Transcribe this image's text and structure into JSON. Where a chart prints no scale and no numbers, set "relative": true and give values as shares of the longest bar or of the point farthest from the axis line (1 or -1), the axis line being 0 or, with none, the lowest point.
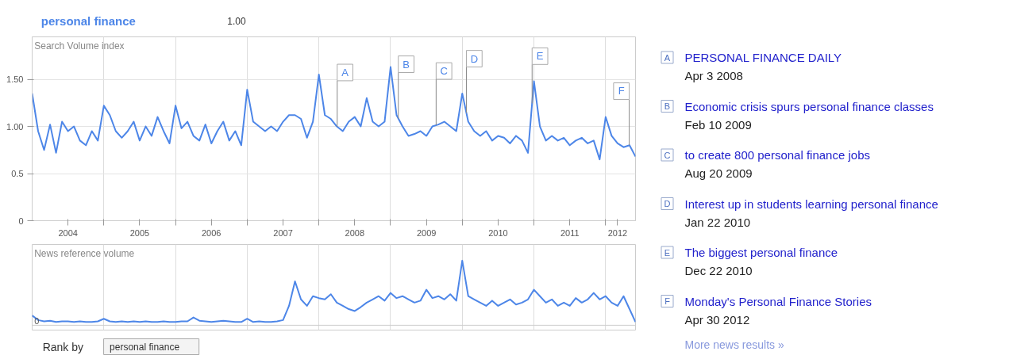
{
  "chart_data": [
    {
      "type": "line",
      "subtitle": "1.00",
      "ylabel": "Search Volume index",
      "xlim": [
        "2004-01",
        "2012-06"
      ],
      "ylim": [
        0,
        1.95
      ],
      "yticks": [
        0,
        0.5,
        {
          "value": 1.0,
          "label": "1.00"
        },
        {
          "value": 1.5,
          "label": "1.50"
        }
      ],
      "xticks": [
        {
          "value": "2004-07",
          "label": "2004"
        },
        {
          "value": "2005-07",
          "label": "2005"
        },
        {
          "value": "2006-07",
          "label": "2006"
        },
        {
          "value": "2007-07",
          "label": "2007"
        },
        {
          "value": "2008-07",
          "label": "2008"
        },
        {
          "value": "2009-07",
          "label": "2009"
        },
        {
          "value": "2010-07",
          "label": "2010"
        },
        {
          "value": "2011-07",
          "label": "2011"
        },
        {
          "value": "2012-03",
          "label": "2012"
        },
        {
          "value": "2005-01",
          "label": null
        },
        {
          "value": "2006-01",
          "label": null
        },
        {
          "value": "2007-01",
          "label": null
        },
        {
          "value": "2008-01",
          "label": null
        },
        {
          "value": "2009-01",
          "label": null
        },
        {
          "value": "2010-01",
          "label": null
        },
        {
          "value": "2011-01",
          "label": null
        },
        {
          "value": "2012-01",
          "label": null
        }
      ],
      "grid": true,
      "ref_lines": [
        {
          "axis": "x",
          "value": "2008-04-03",
          "label": "A"
        },
        {
          "axis": "x",
          "value": "2009-02-10",
          "label": "B"
        },
        {
          "axis": "x",
          "value": "2009-08-20",
          "label": "C"
        },
        {
          "axis": "x",
          "value": "2010-01-22",
          "label": "D"
        },
        {
          "axis": "x",
          "value": "2010-12-22",
          "label": "E"
        },
        {
          "axis": "x",
          "value": "2012-04-30",
          "label": "F"
        }
      ],
      "x": [
        "2004-01",
        "2004-02",
        "2004-03",
        "2004-04",
        "2004-05",
        "2004-06",
        "2004-07",
        "2004-08",
        "2004-09",
        "2004-10",
        "2004-11",
        "2004-12",
        "2005-01",
        "2005-02",
        "2005-03",
        "2005-04",
        "2005-05",
        "2005-06",
        "2005-07",
        "2005-08",
        "2005-09",
        "2005-10",
        "2005-11",
        "2005-12",
        "2006-01",
        "2006-02",
        "2006-03",
        "2006-04",
        "2006-05",
        "2006-06",
        "2006-07",
        "2006-08",
        "2006-09",
        "2006-10",
        "2006-11",
        "2006-12",
        "2007-01",
        "2007-02",
        "2007-03",
        "2007-04",
        "2007-05",
        "2007-06",
        "2007-07",
        "2007-08",
        "2007-09",
        "2007-10",
        "2007-11",
        "2007-12",
        "2008-01",
        "2008-02",
        "2008-03",
        "2008-04",
        "2008-05",
        "2008-06",
        "2008-07",
        "2008-08",
        "2008-09",
        "2008-10",
        "2008-11",
        "2008-12",
        "2009-01",
        "2009-02",
        "2009-03",
        "2009-04",
        "2009-05",
        "2009-06",
        "2009-07",
        "2009-08",
        "2009-09",
        "2009-10",
        "2009-11",
        "2009-12",
        "2010-01",
        "2010-02",
        "2010-03",
        "2010-04",
        "2010-05",
        "2010-06",
        "2010-07",
        "2010-08",
        "2010-09",
        "2010-10",
        "2010-11",
        "2010-12",
        "2011-01",
        "2011-02",
        "2011-03",
        "2011-04",
        "2011-05",
        "2011-06",
        "2011-07",
        "2011-08",
        "2011-09",
        "2011-10",
        "2011-11",
        "2011-12",
        "2012-01",
        "2012-02",
        "2012-03",
        "2012-04",
        "2012-05",
        "2012-06"
      ],
      "series": [
        {
          "name": "personal finance",
          "color": "#4d86e8",
          "values": [
            1.35,
            0.95,
            0.75,
            1.02,
            0.72,
            1.05,
            0.95,
            1.0,
            0.85,
            0.8,
            0.95,
            0.85,
            1.22,
            1.12,
            0.95,
            0.88,
            0.95,
            1.05,
            0.85,
            1.0,
            0.9,
            1.1,
            0.95,
            0.82,
            1.22,
            0.98,
            1.05,
            0.9,
            0.85,
            1.02,
            0.82,
            0.95,
            1.05,
            0.85,
            0.95,
            0.8,
            1.39,
            1.05,
            1.0,
            0.95,
            1.0,
            0.95,
            1.05,
            1.12,
            1.12,
            1.08,
            0.88,
            1.05,
            1.55,
            1.12,
            1.08,
            1.0,
            0.95,
            1.05,
            1.1,
            1.0,
            1.3,
            1.05,
            1.0,
            1.05,
            1.63,
            1.12,
            1.0,
            0.9,
            0.92,
            0.95,
            0.9,
            1.0,
            1.02,
            1.05,
            1.0,
            0.95,
            1.35,
            1.05,
            0.95,
            0.9,
            0.95,
            0.85,
            0.9,
            0.88,
            0.82,
            0.9,
            0.85,
            0.72,
            1.48,
            1.0,
            0.85,
            0.9,
            0.85,
            0.88,
            0.8,
            0.85,
            0.88,
            0.82,
            0.85,
            0.65,
            1.1,
            0.9,
            0.82,
            0.78,
            0.8,
            0.68
          ]
        }
      ]
    },
    {
      "type": "line",
      "ylabel": "News reference volume",
      "relative": true,
      "xlim": [
        "2004-01",
        "2012-06"
      ],
      "grid": "x",
      "annotations": [
        "0",
        "Rank by",
        "personal finance"
      ],
      "x": [
        "2004-01",
        "2004-02",
        "2004-03",
        "2004-04",
        "2004-05",
        "2004-06",
        "2004-07",
        "2004-08",
        "2004-09",
        "2004-10",
        "2004-11",
        "2004-12",
        "2005-01",
        "2005-02",
        "2005-03",
        "2005-04",
        "2005-05",
        "2005-06",
        "2005-07",
        "2005-08",
        "2005-09",
        "2005-10",
        "2005-11",
        "2005-12",
        "2006-01",
        "2006-02",
        "2006-03",
        "2006-04",
        "2006-05",
        "2006-06",
        "2006-07",
        "2006-08",
        "2006-09",
        "2006-10",
        "2006-11",
        "2006-12",
        "2007-01",
        "2007-02",
        "2007-03",
        "2007-04",
        "2007-05",
        "2007-06",
        "2007-07",
        "2007-08",
        "2007-09",
        "2007-10",
        "2007-11",
        "2007-12",
        "2008-01",
        "2008-02",
        "2008-03",
        "2008-04",
        "2008-05",
        "2008-06",
        "2008-07",
        "2008-08",
        "2008-09",
        "2008-10",
        "2008-11",
        "2008-12",
        "2009-01",
        "2009-02",
        "2009-03",
        "2009-04",
        "2009-05",
        "2009-06",
        "2009-07",
        "2009-08",
        "2009-09",
        "2009-10",
        "2009-11",
        "2009-12",
        "2010-01",
        "2010-02",
        "2010-03",
        "2010-04",
        "2010-05",
        "2010-06",
        "2010-07",
        "2010-08",
        "2010-09",
        "2010-10",
        "2010-11",
        "2010-12",
        "2011-01",
        "2011-02",
        "2011-03",
        "2011-04",
        "2011-05",
        "2011-06",
        "2011-07",
        "2011-08",
        "2011-09",
        "2011-10",
        "2011-11",
        "2011-12",
        "2012-01",
        "2012-02",
        "2012-03",
        "2012-04",
        "2012-05",
        "2012-06"
      ],
      "series": [
        {
          "color": "#4d86e8",
          "values": [
            0.15,
            0.08,
            0.06,
            0.07,
            0.05,
            0.06,
            0.06,
            0.05,
            0.06,
            0.05,
            0.05,
            0.06,
            0.1,
            0.06,
            0.05,
            0.06,
            0.05,
            0.06,
            0.05,
            0.06,
            0.05,
            0.05,
            0.06,
            0.05,
            0.05,
            0.06,
            0.06,
            0.12,
            0.07,
            0.06,
            0.05,
            0.06,
            0.07,
            0.06,
            0.05,
            0.05,
            0.1,
            0.05,
            0.06,
            0.05,
            0.05,
            0.06,
            0.08,
            0.3,
            0.68,
            0.4,
            0.3,
            0.45,
            0.42,
            0.4,
            0.48,
            0.35,
            0.3,
            0.25,
            0.22,
            0.28,
            0.35,
            0.4,
            0.45,
            0.38,
            0.5,
            0.42,
            0.45,
            0.4,
            0.35,
            0.38,
            0.55,
            0.42,
            0.45,
            0.4,
            0.48,
            0.38,
            1.0,
            0.45,
            0.4,
            0.35,
            0.3,
            0.38,
            0.3,
            0.35,
            0.4,
            0.32,
            0.35,
            0.4,
            0.55,
            0.45,
            0.35,
            0.4,
            0.3,
            0.35,
            0.3,
            0.42,
            0.35,
            0.4,
            0.5,
            0.4,
            0.45,
            0.35,
            0.3,
            0.45,
            0.25,
            0.05
          ]
        }
      ]
    },
    {
      "type": "other",
      "annotations": [
        "A",
        "PERSONAL FINANCE DAILY",
        "Apr 3 2008",
        "B",
        "Economic crisis spurs personal finance classes",
        "Feb 10 2009",
        "C",
        "to create 800 personal finance jobs",
        "Aug 20 2009",
        "D",
        "Interest up in students learning personal finance",
        "Jan 22 2010",
        "E",
        "The biggest personal finance",
        "Dec 22 2010",
        "F",
        "Monday's Personal Finance Stories",
        "Apr 30 2012",
        "More news results »"
      ]
    }
  ]
}
